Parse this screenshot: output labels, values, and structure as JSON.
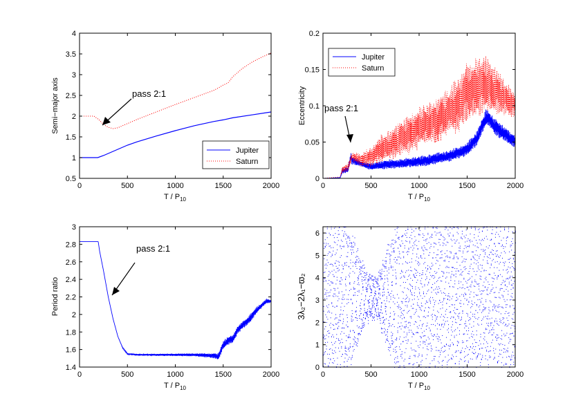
{
  "colors": {
    "jupiter": "#0000ff",
    "saturn": "#ff0000",
    "axis": "#000000",
    "background": "#ffffff"
  },
  "chart_data": [
    {
      "id": "semi-major-axis",
      "type": "line",
      "ylabel": "Semi−major axis",
      "xlabel": "T / P",
      "xlabel_sub": "10",
      "xlim": [
        0,
        2000
      ],
      "ylim": [
        0.5,
        4
      ],
      "xticks": [
        "0",
        "500",
        "1000",
        "1500",
        "2000"
      ],
      "yticks": [
        "0.5",
        "1",
        "1.5",
        "2",
        "2.5",
        "3",
        "3.5",
        "4"
      ],
      "legend": {
        "position": "bottom-right",
        "entries": [
          "Jupiter",
          "Saturn"
        ]
      },
      "annotation": {
        "text": "pass 2:1",
        "points_to": [
          300,
          1.73
        ]
      },
      "series": [
        {
          "name": "Jupiter",
          "style": "solid",
          "x": [
            0,
            190,
            250,
            300,
            400,
            500,
            600,
            800,
            1000,
            1200,
            1400,
            1500,
            1600,
            1800,
            2000
          ],
          "y": [
            1.0,
            1.0,
            1.05,
            1.1,
            1.2,
            1.3,
            1.38,
            1.52,
            1.65,
            1.77,
            1.87,
            1.91,
            1.96,
            2.03,
            2.1
          ]
        },
        {
          "name": "Saturn",
          "style": "dotted",
          "x": [
            0,
            150,
            200,
            250,
            300,
            350,
            400,
            500,
            600,
            800,
            1000,
            1200,
            1400,
            1450,
            1500,
            1550,
            1600,
            1700,
            1800,
            1900,
            2000
          ],
          "y": [
            2.0,
            2.0,
            1.92,
            1.8,
            1.73,
            1.7,
            1.72,
            1.82,
            1.92,
            2.1,
            2.28,
            2.45,
            2.62,
            2.68,
            2.75,
            2.8,
            2.95,
            3.15,
            3.3,
            3.42,
            3.52
          ]
        }
      ]
    },
    {
      "id": "eccentricity",
      "type": "line",
      "ylabel": "Eccentricity",
      "xlabel": "T / P",
      "xlabel_sub": "10",
      "xlim": [
        0,
        2000
      ],
      "ylim": [
        0,
        0.2
      ],
      "xticks": [
        "0",
        "500",
        "1000",
        "1500",
        "2000"
      ],
      "yticks": [
        "0",
        "0.05",
        "0.1",
        "0.15",
        "0.2"
      ],
      "legend": {
        "position": "top-left",
        "entries": [
          "Jupiter",
          "Saturn"
        ]
      },
      "annotation": {
        "text": "pass 2:1",
        "points_to": [
          290,
          0.035
        ]
      },
      "series": [
        {
          "name": "Jupiter",
          "style": "solid",
          "x": [
            0,
            180,
            200,
            260,
            290,
            300,
            400,
            500,
            600,
            700,
            800,
            900,
            1000,
            1100,
            1200,
            1300,
            1400,
            1500,
            1600,
            1700,
            1800,
            1900,
            2000
          ],
          "y": [
            0.0,
            0.001,
            0.01,
            0.012,
            0.03,
            0.025,
            0.02,
            0.016,
            0.018,
            0.02,
            0.02,
            0.022,
            0.023,
            0.025,
            0.028,
            0.03,
            0.035,
            0.04,
            0.055,
            0.085,
            0.07,
            0.06,
            0.05
          ],
          "amp": [
            0,
            0,
            0.004,
            0.004,
            0.006,
            0.006,
            0.004,
            0.005,
            0.006,
            0.007,
            0.007,
            0.007,
            0.008,
            0.008,
            0.008,
            0.008,
            0.009,
            0.01,
            0.011,
            0.012,
            0.012,
            0.011,
            0.01
          ]
        },
        {
          "name": "Saturn",
          "style": "dotted",
          "x": [
            0,
            180,
            200,
            260,
            300,
            400,
            500,
            600,
            700,
            800,
            900,
            1000,
            1100,
            1200,
            1300,
            1400,
            1450,
            1500,
            1550,
            1600,
            1700,
            1800,
            1900,
            2000
          ],
          "y": [
            0.0,
            0.002,
            0.012,
            0.015,
            0.03,
            0.025,
            0.03,
            0.04,
            0.045,
            0.055,
            0.06,
            0.07,
            0.075,
            0.08,
            0.09,
            0.1,
            0.11,
            0.12,
            0.12,
            0.125,
            0.13,
            0.12,
            0.11,
            0.1
          ],
          "amp": [
            0,
            0,
            0.005,
            0.006,
            0.006,
            0.01,
            0.015,
            0.02,
            0.022,
            0.025,
            0.028,
            0.03,
            0.032,
            0.034,
            0.036,
            0.04,
            0.045,
            0.045,
            0.045,
            0.045,
            0.04,
            0.035,
            0.025,
            0.02
          ]
        }
      ]
    },
    {
      "id": "period-ratio",
      "type": "line",
      "ylabel": "Period ratio",
      "xlabel": "T / P",
      "xlabel_sub": "10",
      "xlim": [
        0,
        2000
      ],
      "ylim": [
        1.4,
        3
      ],
      "xticks": [
        "0",
        "500",
        "1000",
        "1500",
        "2000"
      ],
      "yticks": [
        "1.4",
        "1.6",
        "1.8",
        "2",
        "2.2",
        "2.4",
        "2.6",
        "2.8",
        "3"
      ],
      "annotation": {
        "text": "pass 2:1",
        "points_to": [
          350,
          2.22
        ]
      },
      "series": [
        {
          "name": "",
          "style": "solid",
          "x": [
            0,
            195,
            210,
            250,
            300,
            350,
            400,
            450,
            500,
            600,
            800,
            1000,
            1200,
            1400,
            1450,
            1500,
            1550,
            1600,
            1650,
            1700,
            1750,
            1800,
            1850,
            1900,
            1950,
            2000
          ],
          "y": [
            2.83,
            2.83,
            2.72,
            2.5,
            2.2,
            1.95,
            1.75,
            1.62,
            1.55,
            1.54,
            1.54,
            1.54,
            1.54,
            1.53,
            1.52,
            1.65,
            1.7,
            1.72,
            1.82,
            1.88,
            1.92,
            1.98,
            2.05,
            2.1,
            2.15,
            2.15
          ],
          "amp": [
            0,
            0,
            0,
            0,
            0,
            0,
            0,
            0.005,
            0.008,
            0.01,
            0.012,
            0.015,
            0.018,
            0.03,
            0.04,
            0.05,
            0.05,
            0.05,
            0.05,
            0.05,
            0.05,
            0.05,
            0.04,
            0.03,
            0.03,
            0.02
          ]
        }
      ]
    },
    {
      "id": "resonant-angle",
      "type": "scatter",
      "ylabel": "3λ₂−2λ₁−ϖ₂",
      "xlabel": "T / P",
      "xlabel_sub": "10",
      "xlim": [
        0,
        2000
      ],
      "ylim": [
        0,
        6.28
      ],
      "xticks": [
        "0",
        "500",
        "1000",
        "1500",
        "2000"
      ],
      "yticks": [
        "0",
        "1",
        "2",
        "3",
        "4",
        "5",
        "6"
      ],
      "series": [
        {
          "name": "",
          "style": "dots",
          "libration_center": 3.14,
          "x": [
            0,
            200,
            300,
            350,
            400,
            450,
            500,
            550,
            600,
            650,
            700,
            750,
            800,
            900,
            1000,
            1200,
            1400,
            2000
          ],
          "half_width": [
            3.14,
            3.14,
            2.6,
            2.0,
            1.5,
            1.0,
            0.9,
            0.8,
            1.2,
            1.7,
            2.3,
            2.8,
            3.14,
            3.14,
            3.14,
            3.14,
            3.14,
            3.14
          ]
        }
      ]
    }
  ]
}
